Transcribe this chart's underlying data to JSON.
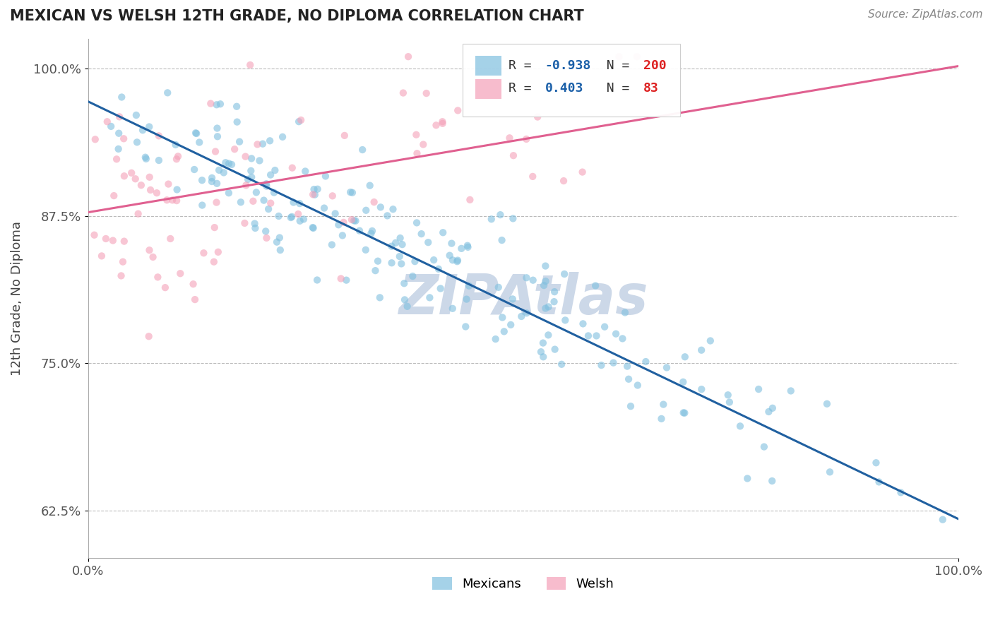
{
  "title": "MEXICAN VS WELSH 12TH GRADE, NO DIPLOMA CORRELATION CHART",
  "ylabel_label": "12th Grade, No Diploma",
  "source_text": "Source: ZipAtlas.com",
  "blue_color": "#7fbfdf",
  "pink_color": "#f4a0b8",
  "blue_line_color": "#2060a0",
  "pink_line_color": "#e06090",
  "watermark": "ZIPAtlas",
  "watermark_color": "#ccd8e8",
  "blue_r": -0.938,
  "blue_n": 200,
  "pink_r": 0.403,
  "pink_n": 83,
  "blue_line_x0": 0.0,
  "blue_line_x1": 1.0,
  "blue_line_y0": 0.972,
  "blue_line_y1": 0.618,
  "pink_line_x0": 0.0,
  "pink_line_x1": 1.0,
  "pink_line_y0": 0.878,
  "pink_line_y1": 1.002,
  "xlim": [
    0.0,
    1.0
  ],
  "ylim": [
    0.585,
    1.025
  ],
  "yticks": [
    0.625,
    0.75,
    0.875,
    1.0
  ],
  "yticklabels": [
    "62.5%",
    "75.0%",
    "87.5%",
    "100.0%"
  ],
  "xticks": [
    0.0,
    1.0
  ],
  "xticklabels": [
    "0.0%",
    "100.0%"
  ],
  "background_color": "#ffffff",
  "grid_color": "#bbbbbb",
  "title_color": "#222222",
  "legend_r_color": "#1a5fa8",
  "legend_n_color": "#dd2020",
  "marker_size": 55,
  "seed_blue": 42,
  "seed_pink": 99
}
